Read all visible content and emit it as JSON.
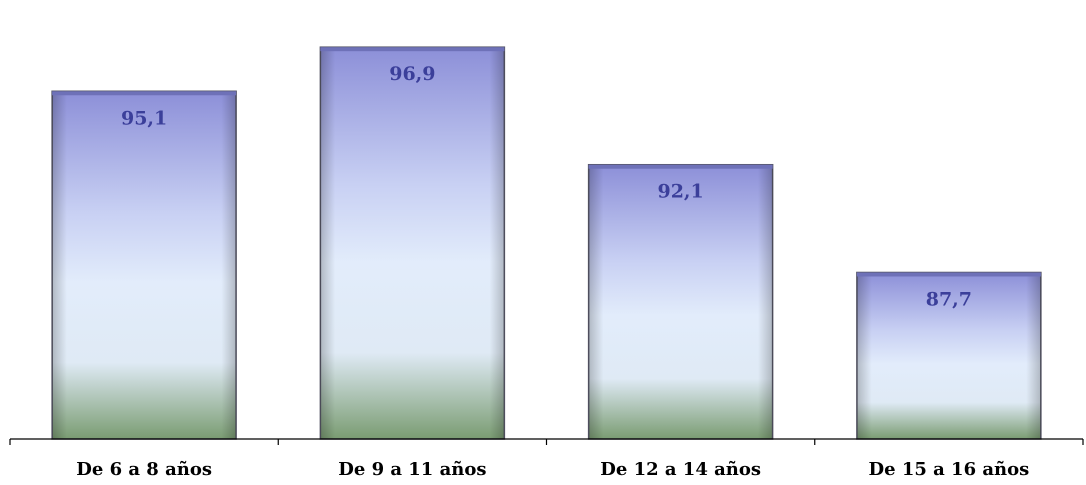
{
  "chart_data": {
    "type": "bar",
    "categories": [
      "De 6 a 8 años",
      "De 9 a 11 años",
      "De 12 a 14 años",
      "De 15 a 16 años"
    ],
    "values": [
      95.1,
      96.9,
      92.1,
      87.7
    ],
    "value_labels": [
      "95,1",
      "96,9",
      "92,1",
      "87,7"
    ],
    "title": "",
    "xlabel": "",
    "ylabel": "",
    "ylim": [
      80.9,
      98.5
    ],
    "grid": false,
    "bar_gradient": [
      "#8c8fd8",
      "#c8d0f3",
      "#e2ecfb",
      "#dfeaf5",
      "#7a9c72"
    ],
    "bar_border_color": "#555565",
    "label_color": "#3b3f9a"
  }
}
